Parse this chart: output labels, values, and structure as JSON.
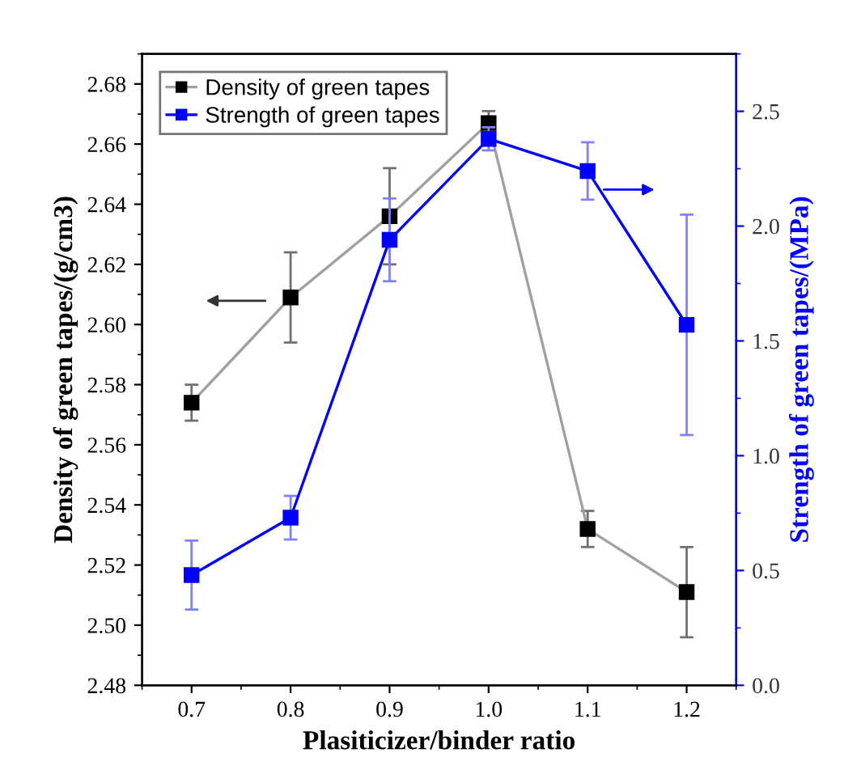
{
  "chart_data": {
    "type": "line",
    "xlabel": "Plasiticizer/binder ratio",
    "ylabel": "Density of green tapes/(g/cm3)",
    "y2label": "Strength of green tapes/(MPa)",
    "x": [
      0.7,
      0.8,
      0.9,
      1.0,
      1.1,
      1.2
    ],
    "series": [
      {
        "name": "Density of green tapes",
        "color": "#000000",
        "values": [
          2.574,
          2.609,
          2.636,
          2.667,
          2.532,
          2.511
        ],
        "errors": [
          0.006,
          0.015,
          0.016,
          0.004,
          0.006,
          0.015
        ]
      },
      {
        "name": "Strength of green tapes",
        "color": "#0000ff",
        "axis": "y2",
        "values": [
          0.48,
          0.73,
          1.94,
          2.38,
          2.24,
          1.57
        ],
        "errors": [
          0.15,
          0.095,
          0.18,
          0.05,
          0.125,
          0.48
        ]
      }
    ],
    "xlim": [
      0.65,
      1.25
    ],
    "xticks": [
      0.7,
      0.8,
      0.9,
      {
        "value": 1,
        "label": "1.0"
      },
      1.1,
      1.2
    ],
    "ylim": [
      2.48,
      2.69
    ],
    "yticks": [
      2.48,
      {
        "value": 2.5,
        "label": "2.50"
      },
      2.52,
      2.54,
      2.56,
      2.58,
      {
        "value": 2.6,
        "label": "2.60"
      },
      2.62,
      2.64,
      2.66,
      2.68
    ],
    "y2lim": [
      0,
      2.75
    ],
    "y2ticks": [
      {
        "value": 0,
        "label": "0.0"
      },
      0.5,
      {
        "value": 1,
        "label": "1.0"
      },
      1.5,
      {
        "value": 2,
        "label": "2.0"
      },
      2.5
    ],
    "marker": "square",
    "line_style": "solid",
    "legend": "top left",
    "grid": false
  }
}
